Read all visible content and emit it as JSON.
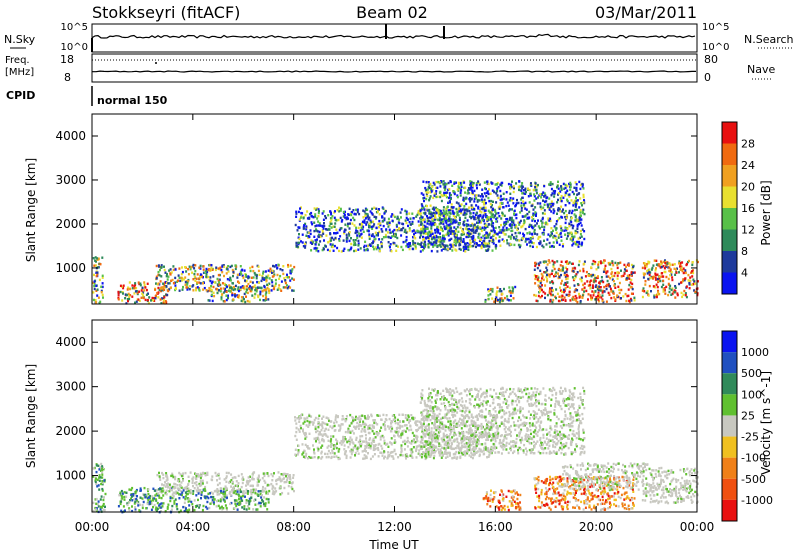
{
  "header": {
    "station": "Stokkseyri (fitACF)",
    "beam": "Beam 02",
    "date": "03/Mar/2011"
  },
  "top_labels": {
    "nsky": "N.Sky",
    "nsearch": "N.Search",
    "freq_line1": "Freq.",
    "freq_line2": "[MHz]",
    "nave": "Nave",
    "cpid": "CPID",
    "cpid_value": "normal 150",
    "nsky_tick_hi": "10^5",
    "nsky_tick_lo": "10^0",
    "freq_tick_hi": "18",
    "freq_tick_lo": "8",
    "nave_tick_hi": "80",
    "nave_tick_lo": "0"
  },
  "colorbars": {
    "power": {
      "label": "Power [dB]",
      "ticks": [
        "28",
        "24",
        "20",
        "16",
        "12",
        "8",
        "4"
      ],
      "colors": [
        "#0a14f0",
        "#1e3a9c",
        "#2e8a5a",
        "#58c048",
        "#e8e030",
        "#f0a020",
        "#f06a10",
        "#e81010"
      ]
    },
    "velocity": {
      "label": "Velocity [m s^-1]",
      "ticks": [
        "1000",
        "500",
        "100",
        "25",
        "-25",
        "-100",
        "-500",
        "-1000"
      ],
      "colors": [
        "#0a14f0",
        "#2050c0",
        "#308a5a",
        "#60c030",
        "#c8c8c0",
        "#f0c020",
        "#f08018",
        "#f05010",
        "#e81010"
      ]
    }
  },
  "chart_data": [
    {
      "type": "heatmap",
      "title": "Power",
      "ylabel": "Slant Range [km]",
      "ylim": [
        180,
        4500
      ],
      "xlim": [
        0,
        24
      ],
      "yticks": [
        "1000",
        "2000",
        "3000",
        "4000"
      ],
      "scatter_regions": [
        {
          "t0": 0.0,
          "t1": 0.4,
          "r0": 200,
          "r1": 1300,
          "level": "mid"
        },
        {
          "t0": 1.0,
          "t1": 3.0,
          "r0": 200,
          "r1": 700,
          "level": "high"
        },
        {
          "t0": 2.5,
          "t1": 8.0,
          "r0": 500,
          "r1": 1100,
          "level": "mid"
        },
        {
          "t0": 4.5,
          "t1": 7.0,
          "r0": 250,
          "r1": 600,
          "level": "mid"
        },
        {
          "t0": 8.0,
          "t1": 16.0,
          "r0": 1400,
          "r1": 2400,
          "level": "low"
        },
        {
          "t0": 13.0,
          "t1": 19.5,
          "r0": 1500,
          "r1": 3000,
          "level": "low"
        },
        {
          "t0": 15.5,
          "t1": 16.8,
          "r0": 250,
          "r1": 600,
          "level": "mid"
        },
        {
          "t0": 17.5,
          "t1": 21.5,
          "r0": 250,
          "r1": 1200,
          "level": "high"
        },
        {
          "t0": 21.8,
          "t1": 24.0,
          "r0": 350,
          "r1": 1200,
          "level": "high"
        }
      ]
    },
    {
      "type": "heatmap",
      "title": "Velocity",
      "ylabel": "Slant Range [km]",
      "ylim": [
        180,
        4500
      ],
      "xlim": [
        0,
        24
      ],
      "yticks": [
        "1000",
        "2000",
        "3000",
        "4000"
      ],
      "scatter_regions": [
        {
          "t0": 0.0,
          "t1": 0.5,
          "r0": 200,
          "r1": 1300,
          "level": "green"
        },
        {
          "t0": 1.0,
          "t1": 4.0,
          "r0": 200,
          "r1": 750,
          "level": "green"
        },
        {
          "t0": 2.5,
          "t1": 8.0,
          "r0": 600,
          "r1": 1100,
          "level": "gray"
        },
        {
          "t0": 4.0,
          "t1": 7.0,
          "r0": 250,
          "r1": 700,
          "level": "green"
        },
        {
          "t0": 8.0,
          "t1": 16.0,
          "r0": 1400,
          "r1": 2400,
          "level": "gray"
        },
        {
          "t0": 13.0,
          "t1": 19.5,
          "r0": 1500,
          "r1": 3000,
          "level": "gray"
        },
        {
          "t0": 15.5,
          "t1": 17.0,
          "r0": 250,
          "r1": 700,
          "level": "orange"
        },
        {
          "t0": 17.5,
          "t1": 21.5,
          "r0": 250,
          "r1": 1000,
          "level": "orange"
        },
        {
          "t0": 18.5,
          "t1": 22.0,
          "r0": 700,
          "r1": 1300,
          "level": "gray"
        },
        {
          "t0": 21.8,
          "t1": 24.0,
          "r0": 400,
          "r1": 1200,
          "level": "gray"
        }
      ]
    }
  ],
  "time_axis": {
    "label": "Time UT",
    "ticks": [
      "00:00",
      "04:00",
      "08:00",
      "12:00",
      "16:00",
      "20:00",
      "00:00"
    ]
  }
}
